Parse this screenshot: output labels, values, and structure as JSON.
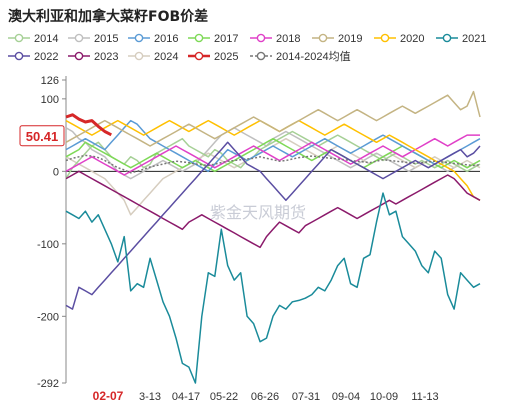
{
  "chart_data": {
    "type": "line",
    "title": "澳大利亚和加拿大菜籽FOB价差",
    "y_ticks": [
      126,
      100,
      0,
      -100,
      -200,
      -292
    ],
    "ylim": [
      -292,
      126
    ],
    "x_ticks": [
      "02-07",
      "3-13",
      "04-17",
      "05-22",
      "06-26",
      "07-31",
      "09-04",
      "10-09",
      "11-13"
    ],
    "x_tick_highlight": "02-07",
    "current_value_label": "50.41",
    "legend_position": "top",
    "watermark": "紫金天风期货",
    "series": [
      {
        "name": "2014",
        "color": "#a6d096",
        "dash": false,
        "values": [
          -10,
          5,
          15,
          25,
          35,
          40,
          30,
          20,
          15,
          10,
          20,
          15,
          5,
          10,
          25,
          30,
          35,
          40,
          45,
          35,
          30,
          25,
          20,
          30,
          25,
          15,
          10,
          5,
          15,
          20,
          30,
          35,
          40,
          45,
          50,
          55,
          50,
          45,
          40,
          35,
          40,
          45,
          50,
          45,
          40,
          35,
          30,
          25,
          20,
          15,
          20,
          25,
          20,
          15,
          10,
          15,
          10,
          5,
          10,
          15,
          10,
          5,
          0,
          5,
          10
        ]
      },
      {
        "name": "2015",
        "color": "#bfbfbf",
        "dash": false,
        "values": [
          60,
          55,
          45,
          40,
          30,
          25,
          20,
          10,
          0,
          -5,
          -10,
          -5,
          0,
          5,
          10,
          15,
          10,
          5,
          0,
          5,
          10,
          20,
          30,
          40,
          50,
          55,
          60,
          55,
          50,
          45,
          40,
          35,
          45,
          50,
          55,
          50,
          45,
          40,
          35,
          30,
          25,
          20,
          15,
          10,
          5,
          10,
          15,
          20,
          25,
          20,
          15,
          10,
          5,
          0,
          5,
          10,
          15,
          10,
          5,
          0,
          5,
          10,
          5,
          10,
          15
        ]
      },
      {
        "name": "2016",
        "color": "#5b9bd5",
        "dash": false,
        "values": [
          30,
          35,
          40,
          45,
          40,
          35,
          30,
          40,
          50,
          60,
          70,
          65,
          55,
          45,
          40,
          35,
          30,
          25,
          20,
          15,
          10,
          5,
          0,
          10,
          20,
          30,
          25,
          20,
          15,
          20,
          25,
          30,
          35,
          30,
          25,
          20,
          25,
          30,
          35,
          40,
          45,
          40,
          35,
          30,
          25,
          30,
          35,
          40,
          45,
          50,
          45,
          40,
          35,
          30,
          25,
          20,
          15,
          10,
          15,
          20,
          25,
          30,
          35,
          40,
          45
        ]
      },
      {
        "name": "2017",
        "color": "#7ed957",
        "dash": false,
        "values": [
          20,
          25,
          30,
          40,
          35,
          30,
          25,
          20,
          15,
          10,
          5,
          10,
          15,
          20,
          25,
          20,
          15,
          10,
          5,
          10,
          15,
          10,
          5,
          0,
          5,
          10,
          15,
          20,
          25,
          30,
          35,
          40,
          45,
          40,
          35,
          30,
          25,
          20,
          15,
          20,
          25,
          30,
          25,
          20,
          15,
          10,
          5,
          10,
          15,
          20,
          25,
          30,
          35,
          30,
          25,
          20,
          15,
          10,
          5,
          10,
          15,
          10,
          5,
          10,
          15
        ]
      },
      {
        "name": "2018",
        "color": "#e040c8",
        "dash": false,
        "values": [
          0,
          5,
          10,
          15,
          20,
          15,
          10,
          5,
          0,
          -5,
          0,
          5,
          10,
          15,
          20,
          25,
          30,
          35,
          30,
          25,
          20,
          15,
          10,
          5,
          10,
          15,
          20,
          25,
          30,
          35,
          30,
          25,
          20,
          15,
          20,
          25,
          30,
          35,
          40,
          35,
          30,
          25,
          20,
          15,
          10,
          15,
          20,
          25,
          30,
          35,
          30,
          25,
          20,
          25,
          30,
          35,
          40,
          45,
          40,
          35,
          40,
          45,
          50,
          50,
          50
        ]
      },
      {
        "name": "2019",
        "color": "#c4b483",
        "dash": false,
        "values": [
          40,
          45,
          50,
          55,
          60,
          65,
          70,
          65,
          60,
          55,
          50,
          45,
          40,
          35,
          40,
          45,
          50,
          55,
          60,
          65,
          60,
          55,
          50,
          45,
          50,
          55,
          60,
          65,
          70,
          75,
          70,
          65,
          60,
          55,
          60,
          65,
          70,
          75,
          80,
          85,
          80,
          75,
          70,
          75,
          80,
          85,
          80,
          75,
          70,
          75,
          80,
          85,
          90,
          85,
          80,
          85,
          90,
          95,
          100,
          105,
          95,
          85,
          90,
          110,
          75
        ]
      },
      {
        "name": "2020",
        "color": "#ffc000",
        "dash": false,
        "values": [
          70,
          65,
          60,
          55,
          50,
          55,
          60,
          65,
          70,
          65,
          60,
          55,
          50,
          55,
          60,
          65,
          70,
          65,
          60,
          55,
          60,
          65,
          70,
          65,
          60,
          55,
          50,
          55,
          60,
          65,
          70,
          65,
          60,
          55,
          60,
          65,
          70,
          65,
          60,
          55,
          50,
          55,
          60,
          65,
          60,
          55,
          50,
          45,
          40,
          45,
          50,
          45,
          40,
          35,
          30,
          25,
          20,
          15,
          10,
          5,
          0,
          -10,
          -20,
          -35,
          -40
        ]
      },
      {
        "name": "2021",
        "color": "#1a8b9a",
        "dash": false,
        "values": [
          -55,
          -60,
          -65,
          -55,
          -70,
          -60,
          -80,
          -100,
          -125,
          -90,
          -165,
          -155,
          -160,
          -120,
          -150,
          -180,
          -200,
          -230,
          -265,
          -270,
          -292,
          -200,
          -140,
          -145,
          -80,
          -130,
          -150,
          -140,
          -200,
          -210,
          -235,
          -230,
          -200,
          -185,
          -190,
          -180,
          -178,
          -175,
          -170,
          -160,
          -165,
          -150,
          -130,
          -120,
          -155,
          -160,
          -120,
          -115,
          -70,
          -30,
          -60,
          -55,
          -90,
          -100,
          -110,
          -130,
          -140,
          -110,
          -120,
          -170,
          -190,
          -140,
          -150,
          -160,
          -155
        ]
      },
      {
        "name": "2022",
        "color": "#5b4ea2",
        "dash": false,
        "values": [
          -185,
          -190,
          -160,
          -165,
          -170,
          -160,
          -150,
          -140,
          -130,
          -120,
          -110,
          -100,
          -90,
          -80,
          -70,
          -60,
          -50,
          -40,
          -30,
          -20,
          -10,
          0,
          10,
          20,
          30,
          40,
          30,
          20,
          10,
          5,
          0,
          -10,
          -20,
          -30,
          -40,
          -30,
          -20,
          -10,
          0,
          10,
          20,
          30,
          25,
          20,
          15,
          10,
          5,
          0,
          -5,
          -10,
          -5,
          0,
          5,
          10,
          15,
          10,
          5,
          10,
          15,
          20,
          25,
          30,
          20,
          25,
          35
        ]
      },
      {
        "name": "2023",
        "color": "#8b1a6b",
        "dash": false,
        "values": [
          -10,
          -5,
          0,
          -5,
          -10,
          -15,
          -20,
          -25,
          -30,
          -35,
          -40,
          -45,
          -50,
          -55,
          -60,
          -65,
          -70,
          -75,
          -80,
          -70,
          -65,
          -60,
          -65,
          -70,
          -75,
          -80,
          -85,
          -90,
          -95,
          -100,
          -105,
          -90,
          -80,
          -70,
          -75,
          -80,
          -85,
          -75,
          -70,
          -65,
          -60,
          -55,
          -50,
          -55,
          -60,
          -65,
          -60,
          -55,
          -50,
          -45,
          -40,
          -45,
          -40,
          -35,
          -30,
          -25,
          -20,
          -15,
          -10,
          -5,
          -10,
          -20,
          -30,
          -35,
          -40
        ]
      },
      {
        "name": "2024",
        "color": "#d6cdbf",
        "dash": false,
        "values": [
          20,
          15,
          10,
          5,
          0,
          -5,
          -10,
          -20,
          -30,
          -40,
          -60,
          -50,
          -40,
          -30,
          -20,
          -10,
          -5,
          0,
          5,
          10,
          15,
          20,
          25,
          20,
          15,
          10,
          5,
          10,
          15,
          20,
          25,
          30,
          35,
          40,
          45,
          40,
          35,
          30,
          25,
          20,
          25,
          30,
          35,
          30,
          25,
          20,
          15,
          10,
          15,
          20,
          25,
          20,
          15,
          10,
          5,
          10,
          15,
          20,
          15,
          10,
          5,
          10,
          15,
          10,
          5
        ]
      },
      {
        "name": "2025",
        "color": "#d62728",
        "dash": false,
        "bold": true,
        "values": [
          75,
          78,
          72,
          68,
          70,
          62,
          55,
          50.41
        ]
      },
      {
        "name": "2014-2024均值",
        "color": "#777777",
        "dash": true,
        "values": [
          15,
          18,
          20,
          22,
          21,
          19,
          15,
          10,
          5,
          2,
          -2,
          0,
          3,
          6,
          8,
          10,
          12,
          14,
          13,
          12,
          10,
          9,
          8,
          10,
          12,
          14,
          15,
          16,
          17,
          18,
          20,
          18,
          16,
          14,
          15,
          17,
          19,
          20,
          21,
          20,
          19,
          18,
          17,
          16,
          15,
          14,
          13,
          12,
          14,
          16,
          15,
          14,
          13,
          12,
          11,
          12,
          13,
          14,
          13,
          12,
          11,
          10,
          9,
          8,
          9
        ]
      }
    ]
  }
}
